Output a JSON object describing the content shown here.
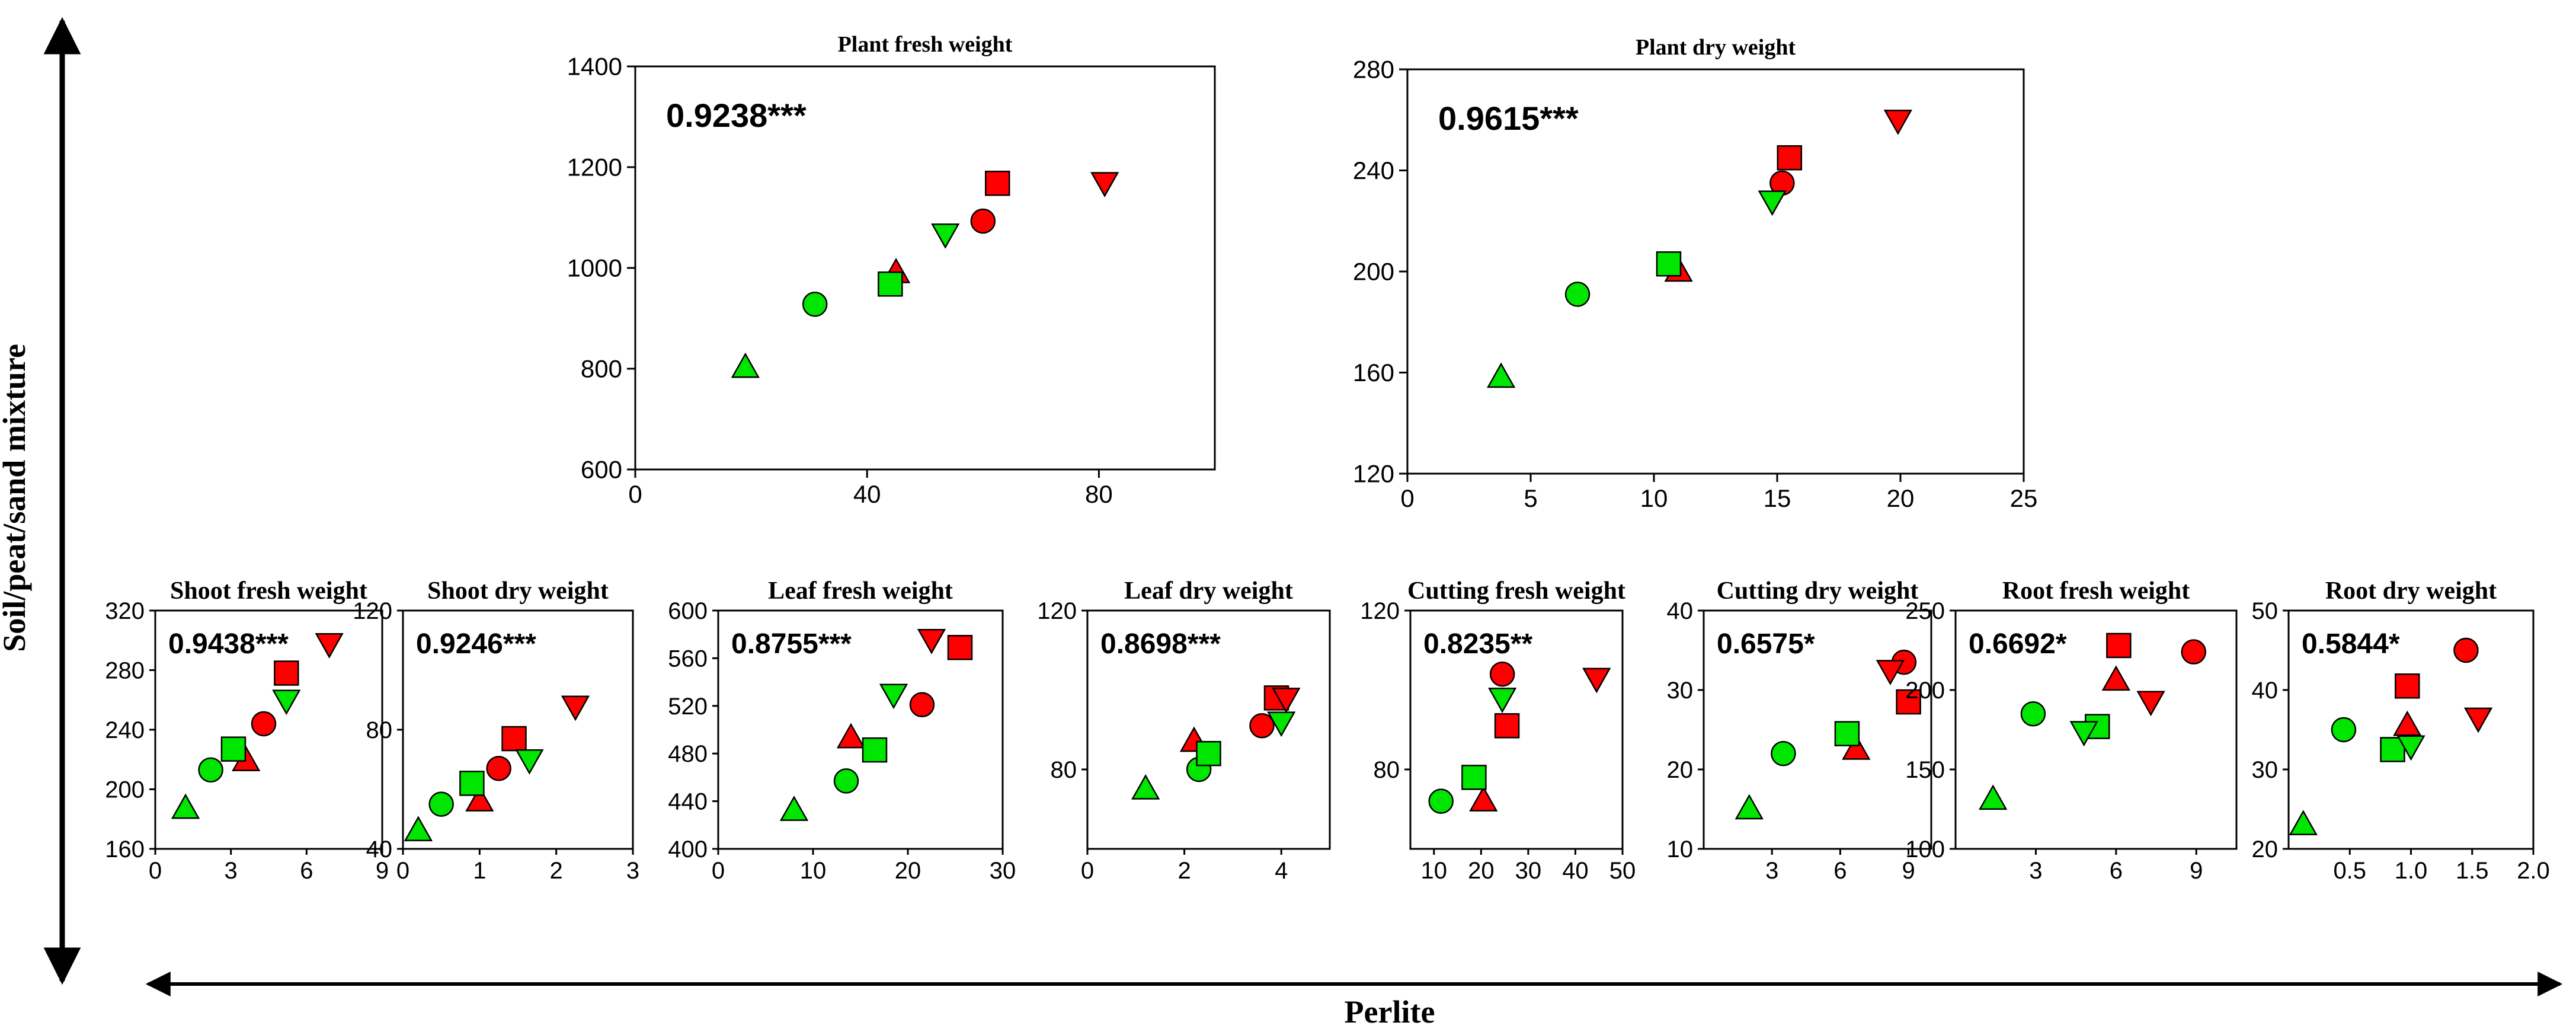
{
  "figure": {
    "x_axis_label": "Perlite",
    "y_axis_label": "Soil/peat/sand mixture",
    "marker_colors": {
      "red": "#ff0000",
      "green": "#00e600",
      "stroke": "#000000"
    }
  },
  "chart_data": [
    {
      "type": "scatter",
      "title": "Plant fresh weight",
      "annotation": "0.9238***",
      "xlim": [
        0,
        100
      ],
      "ylim": [
        600,
        1400
      ],
      "xticks": [
        0,
        40,
        80
      ],
      "xtick_labels": [
        "0",
        "40",
        "80"
      ],
      "yticks": [
        600,
        800,
        1000,
        1200,
        1400
      ],
      "ytick_labels": [
        "600",
        "800",
        "1000",
        "1200",
        "1400"
      ],
      "series": [
        {
          "name": "red circle",
          "color": "red",
          "marker": "circle",
          "x": 60,
          "y": 1093
        },
        {
          "name": "red square",
          "color": "red",
          "marker": "square",
          "x": 62.5,
          "y": 1168
        },
        {
          "name": "red triangle-up",
          "color": "red",
          "marker": "triangle-up",
          "x": 45,
          "y": 990
        },
        {
          "name": "red triangle-down",
          "color": "red",
          "marker": "triangle-down",
          "x": 81,
          "y": 1170
        },
        {
          "name": "green circle",
          "color": "green",
          "marker": "circle",
          "x": 31,
          "y": 928
        },
        {
          "name": "green square",
          "color": "green",
          "marker": "square",
          "x": 44,
          "y": 968
        },
        {
          "name": "green triangle-up",
          "color": "green",
          "marker": "triangle-up",
          "x": 19,
          "y": 802
        },
        {
          "name": "green triangle-down",
          "color": "green",
          "marker": "triangle-down",
          "x": 53.5,
          "y": 1068
        }
      ]
    },
    {
      "type": "scatter",
      "title": "Plant dry weight",
      "annotation": "0.9615***",
      "xlim": [
        0,
        25
      ],
      "ylim": [
        120,
        280
      ],
      "xticks": [
        0,
        5,
        10,
        15,
        20,
        25
      ],
      "xtick_labels": [
        "0",
        "5",
        "10",
        "15",
        "20",
        "25"
      ],
      "yticks": [
        120,
        160,
        200,
        240,
        280
      ],
      "ytick_labels": [
        "120",
        "160",
        "200",
        "240",
        "280"
      ],
      "series": [
        {
          "name": "red circle",
          "color": "red",
          "marker": "circle",
          "x": 15.2,
          "y": 235
        },
        {
          "name": "red square",
          "color": "red",
          "marker": "square",
          "x": 15.5,
          "y": 245
        },
        {
          "name": "red triangle-up",
          "color": "red",
          "marker": "triangle-up",
          "x": 11,
          "y": 200
        },
        {
          "name": "red triangle-down",
          "color": "red",
          "marker": "triangle-down",
          "x": 19.9,
          "y": 260
        },
        {
          "name": "green circle",
          "color": "green",
          "marker": "circle",
          "x": 6.9,
          "y": 191
        },
        {
          "name": "green square",
          "color": "green",
          "marker": "square",
          "x": 10.6,
          "y": 203
        },
        {
          "name": "green triangle-up",
          "color": "green",
          "marker": "triangle-up",
          "x": 3.8,
          "y": 158
        },
        {
          "name": "green triangle-down",
          "color": "green",
          "marker": "triangle-down",
          "x": 14.8,
          "y": 228
        }
      ]
    },
    {
      "type": "scatter",
      "title": "Shoot fresh weight",
      "annotation": "0.9438***",
      "xlim": [
        0,
        9
      ],
      "ylim": [
        160,
        320
      ],
      "xticks": [
        0,
        3,
        6,
        9
      ],
      "xtick_labels": [
        "0",
        "3",
        "6",
        "9"
      ],
      "yticks": [
        160,
        200,
        240,
        280,
        320
      ],
      "ytick_labels": [
        "160",
        "200",
        "240",
        "280",
        "320"
      ],
      "series": [
        {
          "name": "red circle",
          "color": "red",
          "marker": "circle",
          "x": 4.3,
          "y": 244
        },
        {
          "name": "red square",
          "color": "red",
          "marker": "square",
          "x": 5.2,
          "y": 278
        },
        {
          "name": "red triangle-up",
          "color": "red",
          "marker": "triangle-up",
          "x": 3.6,
          "y": 219
        },
        {
          "name": "red triangle-down",
          "color": "red",
          "marker": "triangle-down",
          "x": 6.9,
          "y": 298
        },
        {
          "name": "green circle",
          "color": "green",
          "marker": "circle",
          "x": 2.2,
          "y": 213
        },
        {
          "name": "green square",
          "color": "green",
          "marker": "square",
          "x": 3.1,
          "y": 227
        },
        {
          "name": "green triangle-up",
          "color": "green",
          "marker": "triangle-up",
          "x": 1.2,
          "y": 187
        },
        {
          "name": "green triangle-down",
          "color": "green",
          "marker": "triangle-down",
          "x": 5.2,
          "y": 260
        }
      ]
    },
    {
      "type": "scatter",
      "title": "Shoot dry weight",
      "annotation": "0.9246***",
      "xlim": [
        0,
        3
      ],
      "ylim": [
        40,
        120
      ],
      "xticks": [
        0,
        1,
        2,
        3
      ],
      "xtick_labels": [
        "0",
        "1",
        "2",
        "3"
      ],
      "yticks": [
        40,
        80,
        120
      ],
      "ytick_labels": [
        "40",
        "80",
        "120"
      ],
      "series": [
        {
          "name": "red circle",
          "color": "red",
          "marker": "circle",
          "x": 1.25,
          "y": 67
        },
        {
          "name": "red square",
          "color": "red",
          "marker": "square",
          "x": 1.45,
          "y": 77
        },
        {
          "name": "red triangle-up",
          "color": "red",
          "marker": "triangle-up",
          "x": 1.0,
          "y": 56
        },
        {
          "name": "red triangle-down",
          "color": "red",
          "marker": "triangle-down",
          "x": 2.25,
          "y": 88
        },
        {
          "name": "green circle",
          "color": "green",
          "marker": "circle",
          "x": 0.5,
          "y": 55
        },
        {
          "name": "green square",
          "color": "green",
          "marker": "square",
          "x": 0.9,
          "y": 62
        },
        {
          "name": "green triangle-up",
          "color": "green",
          "marker": "triangle-up",
          "x": 0.2,
          "y": 46
        },
        {
          "name": "green triangle-down",
          "color": "green",
          "marker": "triangle-down",
          "x": 1.65,
          "y": 70
        }
      ]
    },
    {
      "type": "scatter",
      "title": "Leaf fresh weight",
      "annotation": "0.8755***",
      "xlim": [
        0,
        30
      ],
      "ylim": [
        400,
        600
      ],
      "xticks": [
        0,
        10,
        20,
        30
      ],
      "xtick_labels": [
        "0",
        "10",
        "20",
        "30"
      ],
      "yticks": [
        400,
        440,
        480,
        520,
        560,
        600
      ],
      "ytick_labels": [
        "400",
        "440",
        "480",
        "520",
        "560",
        "600"
      ],
      "series": [
        {
          "name": "red circle",
          "color": "red",
          "marker": "circle",
          "x": 21.5,
          "y": 521
        },
        {
          "name": "red square",
          "color": "red",
          "marker": "square",
          "x": 25.5,
          "y": 569
        },
        {
          "name": "red triangle-up",
          "color": "red",
          "marker": "triangle-up",
          "x": 14,
          "y": 493
        },
        {
          "name": "red triangle-down",
          "color": "red",
          "marker": "triangle-down",
          "x": 22.5,
          "y": 576
        },
        {
          "name": "green circle",
          "color": "green",
          "marker": "circle",
          "x": 13.5,
          "y": 457
        },
        {
          "name": "green square",
          "color": "green",
          "marker": "square",
          "x": 16.5,
          "y": 483
        },
        {
          "name": "green triangle-up",
          "color": "green",
          "marker": "triangle-up",
          "x": 8,
          "y": 432
        },
        {
          "name": "green triangle-down",
          "color": "green",
          "marker": "triangle-down",
          "x": 18.5,
          "y": 530
        }
      ]
    },
    {
      "type": "scatter",
      "title": "Leaf dry weight",
      "annotation": "0.8698***",
      "xlim": [
        0,
        5
      ],
      "ylim": [
        60,
        120
      ],
      "xticks": [
        0,
        2,
        4
      ],
      "xtick_labels": [
        "0",
        "2",
        "4"
      ],
      "yticks": [
        80,
        120
      ],
      "ytick_labels": [
        "80",
        "120"
      ],
      "series": [
        {
          "name": "red circle",
          "color": "red",
          "marker": "circle",
          "x": 3.6,
          "y": 91
        },
        {
          "name": "red square",
          "color": "red",
          "marker": "square",
          "x": 3.9,
          "y": 98
        },
        {
          "name": "red triangle-up",
          "color": "red",
          "marker": "triangle-up",
          "x": 2.2,
          "y": 87
        },
        {
          "name": "red triangle-down",
          "color": "red",
          "marker": "triangle-down",
          "x": 4.1,
          "y": 98
        },
        {
          "name": "green circle",
          "color": "green",
          "marker": "circle",
          "x": 2.3,
          "y": 80
        },
        {
          "name": "green square",
          "color": "green",
          "marker": "square",
          "x": 2.5,
          "y": 84
        },
        {
          "name": "green triangle-up",
          "color": "green",
          "marker": "triangle-up",
          "x": 1.2,
          "y": 75
        },
        {
          "name": "green triangle-down",
          "color": "green",
          "marker": "triangle-down",
          "x": 4.0,
          "y": 92
        }
      ]
    },
    {
      "type": "scatter",
      "title": "Cutting fresh weight",
      "annotation": "0.8235**",
      "xlim": [
        5,
        50
      ],
      "ylim": [
        60,
        120
      ],
      "xticks": [
        10,
        20,
        30,
        40,
        50
      ],
      "xtick_labels": [
        "10",
        "20",
        "30",
        "40",
        "50"
      ],
      "yticks": [
        80,
        120
      ],
      "ytick_labels": [
        "80",
        "120"
      ],
      "series": [
        {
          "name": "red circle",
          "color": "red",
          "marker": "circle",
          "x": 24.5,
          "y": 104
        },
        {
          "name": "red square",
          "color": "red",
          "marker": "square",
          "x": 25.5,
          "y": 91
        },
        {
          "name": "red triangle-up",
          "color": "red",
          "marker": "triangle-up",
          "x": 20.5,
          "y": 72
        },
        {
          "name": "red triangle-down",
          "color": "red",
          "marker": "triangle-down",
          "x": 44.5,
          "y": 103
        },
        {
          "name": "green circle",
          "color": "green",
          "marker": "circle",
          "x": 11.5,
          "y": 72
        },
        {
          "name": "green square",
          "color": "green",
          "marker": "square",
          "x": 18.5,
          "y": 78
        },
        {
          "name": "green triangle-down",
          "color": "green",
          "marker": "triangle-down",
          "x": 24.5,
          "y": 98
        }
      ]
    },
    {
      "type": "scatter",
      "title": "Cutting dry weight",
      "annotation": "0.6575*",
      "xlim": [
        0,
        10
      ],
      "ylim": [
        10,
        40
      ],
      "xticks": [
        3,
        6,
        9
      ],
      "xtick_labels": [
        "3",
        "6",
        "9"
      ],
      "yticks": [
        10,
        20,
        30,
        40
      ],
      "ytick_labels": [
        "10",
        "20",
        "30",
        "40"
      ],
      "series": [
        {
          "name": "red circle",
          "color": "red",
          "marker": "circle",
          "x": 8.8,
          "y": 33.5
        },
        {
          "name": "red square",
          "color": "red",
          "marker": "square",
          "x": 9.0,
          "y": 28.5
        },
        {
          "name": "red triangle-up",
          "color": "red",
          "marker": "triangle-up",
          "x": 6.7,
          "y": 22.5
        },
        {
          "name": "red triangle-down",
          "color": "red",
          "marker": "triangle-down",
          "x": 8.2,
          "y": 32.5
        },
        {
          "name": "green circle",
          "color": "green",
          "marker": "circle",
          "x": 3.5,
          "y": 22
        },
        {
          "name": "green square",
          "color": "green",
          "marker": "square",
          "x": 6.3,
          "y": 24.5
        },
        {
          "name": "green triangle-up",
          "color": "green",
          "marker": "triangle-up",
          "x": 2.0,
          "y": 15
        }
      ]
    },
    {
      "type": "scatter",
      "title": "Root fresh weight",
      "annotation": "0.6692*",
      "xlim": [
        0,
        10.5
      ],
      "ylim": [
        100,
        250
      ],
      "xticks": [
        3,
        6,
        9
      ],
      "xtick_labels": [
        "3",
        "6",
        "9"
      ],
      "yticks": [
        100,
        150,
        200,
        250
      ],
      "ytick_labels": [
        "100",
        "150",
        "200",
        "250"
      ],
      "series": [
        {
          "name": "red circle",
          "color": "red",
          "marker": "circle",
          "x": 8.9,
          "y": 224
        },
        {
          "name": "red square",
          "color": "red",
          "marker": "square",
          "x": 6.1,
          "y": 228
        },
        {
          "name": "red triangle-up",
          "color": "red",
          "marker": "triangle-up",
          "x": 6.0,
          "y": 206
        },
        {
          "name": "red triangle-down",
          "color": "red",
          "marker": "triangle-down",
          "x": 7.3,
          "y": 193
        },
        {
          "name": "green circle",
          "color": "green",
          "marker": "circle",
          "x": 2.9,
          "y": 185
        },
        {
          "name": "green square",
          "color": "green",
          "marker": "square",
          "x": 5.3,
          "y": 177
        },
        {
          "name": "green triangle-up",
          "color": "green",
          "marker": "triangle-up",
          "x": 1.4,
          "y": 131
        },
        {
          "name": "green triangle-down",
          "color": "green",
          "marker": "triangle-down",
          "x": 4.8,
          "y": 174
        }
      ]
    },
    {
      "type": "scatter",
      "title": "Root dry weight",
      "annotation": "0.5844*",
      "xlim": [
        0,
        2.0
      ],
      "ylim": [
        20,
        50
      ],
      "xticks": [
        0.5,
        1.0,
        1.5,
        2.0
      ],
      "xtick_labels": [
        "0.5",
        "1.0",
        "1.5",
        "2.0"
      ],
      "yticks": [
        20,
        30,
        40,
        50
      ],
      "ytick_labels": [
        "20",
        "30",
        "40",
        "50"
      ],
      "series": [
        {
          "name": "red circle",
          "color": "red",
          "marker": "circle",
          "x": 1.45,
          "y": 45
        },
        {
          "name": "red square",
          "color": "red",
          "marker": "square",
          "x": 0.97,
          "y": 40.5
        },
        {
          "name": "red triangle-up",
          "color": "red",
          "marker": "triangle-up",
          "x": 0.97,
          "y": 35.5
        },
        {
          "name": "red triangle-down",
          "color": "red",
          "marker": "triangle-down",
          "x": 1.55,
          "y": 36.5
        },
        {
          "name": "green circle",
          "color": "green",
          "marker": "circle",
          "x": 0.45,
          "y": 35
        },
        {
          "name": "green square",
          "color": "green",
          "marker": "square",
          "x": 0.85,
          "y": 32.5
        },
        {
          "name": "green triangle-up",
          "color": "green",
          "marker": "triangle-up",
          "x": 0.12,
          "y": 23
        },
        {
          "name": "green triangle-down",
          "color": "green",
          "marker": "triangle-down",
          "x": 1.0,
          "y": 33
        }
      ]
    }
  ]
}
